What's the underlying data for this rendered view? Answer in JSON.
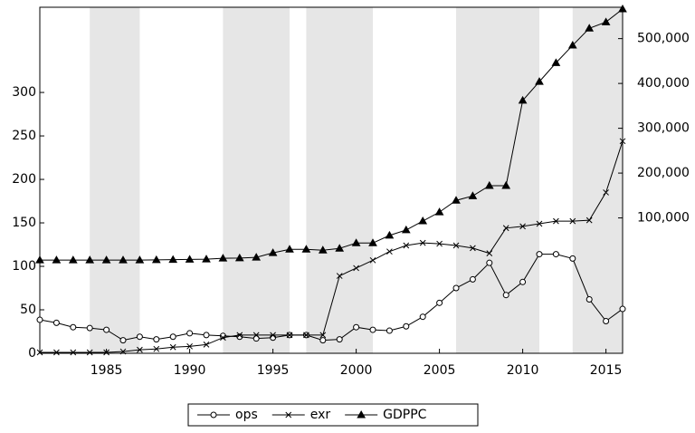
{
  "chart_data": {
    "type": "line",
    "x": [
      1981,
      1982,
      1983,
      1984,
      1985,
      1986,
      1987,
      1988,
      1989,
      1990,
      1991,
      1992,
      1993,
      1994,
      1995,
      1996,
      1997,
      1998,
      1999,
      2000,
      2001,
      2002,
      2003,
      2004,
      2005,
      2006,
      2007,
      2008,
      2009,
      2010,
      2011,
      2012,
      2013,
      2014,
      2015,
      2016
    ],
    "xlim": [
      1981,
      2016
    ],
    "xticks": [
      1985,
      1990,
      1995,
      2000,
      2005,
      2010,
      2015
    ],
    "ylim": [
      0,
      398
    ],
    "yticks": [
      0,
      50,
      100,
      150,
      200,
      250,
      300
    ],
    "y2lim": [
      -202000,
      570000
    ],
    "y2ticks": [
      {
        "value": 100000,
        "label": "100,000"
      },
      {
        "value": 200000,
        "label": "200,000"
      },
      {
        "value": 300000,
        "label": "300,000"
      },
      {
        "value": 400000,
        "label": "400,000"
      },
      {
        "value": 500000,
        "label": "500,000"
      }
    ],
    "shaded": [
      [
        1984,
        1987
      ],
      [
        1992,
        1996
      ],
      [
        1997,
        2001
      ],
      [
        2006,
        2011
      ],
      [
        2013,
        2016
      ]
    ],
    "shade_color": "#e6e6e6",
    "series": [
      {
        "name": "ops",
        "color": "#000000",
        "marker": "circle",
        "values": [
          38.5,
          35,
          30,
          29,
          27,
          15,
          19,
          16,
          19,
          23,
          21,
          20,
          19,
          17,
          18,
          21,
          21,
          15,
          16,
          30,
          27,
          26,
          31,
          42,
          58,
          75,
          85,
          104,
          67,
          82,
          114,
          114,
          109,
          62,
          37,
          51
        ]
      },
      {
        "name": "exr",
        "color": "#000000",
        "marker": "x",
        "values": [
          1,
          1,
          1,
          1,
          1,
          2,
          4,
          5,
          7,
          8,
          10,
          18,
          21,
          21,
          21,
          21,
          21,
          21,
          89,
          98,
          107,
          117,
          124,
          127,
          126,
          124,
          121,
          115,
          144,
          146,
          149,
          152,
          152,
          153,
          185,
          244
        ]
      },
      {
        "name": "GDPPC",
        "color": "#000000",
        "marker": "triangle",
        "axis": "y2",
        "values": [
          6000,
          6000,
          6000,
          6000,
          6000,
          6000,
          6000,
          6500,
          7000,
          7500,
          8000,
          10000,
          10500,
          12000,
          22000,
          30000,
          30000,
          28000,
          32000,
          44000,
          44000,
          61000,
          73000,
          93000,
          113000,
          139000,
          149000,
          172000,
          172000,
          362000,
          404000,
          446000,
          485000,
          523000,
          537000,
          566000
        ]
      }
    ]
  }
}
